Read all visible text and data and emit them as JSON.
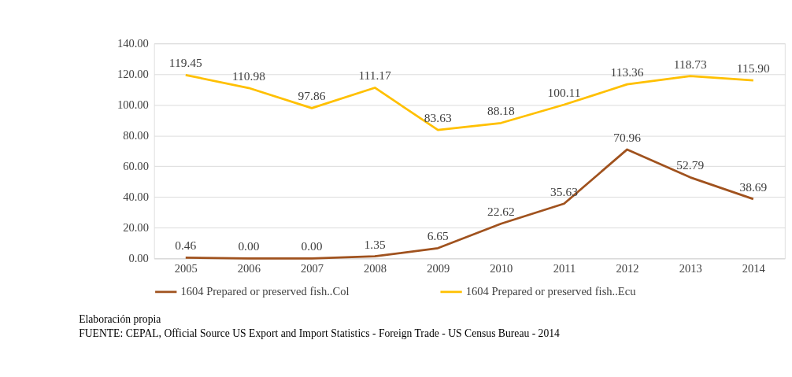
{
  "chart_data": {
    "type": "line",
    "categories": [
      "2005",
      "2006",
      "2007",
      "2008",
      "2009",
      "2010",
      "2011",
      "2012",
      "2013",
      "2014"
    ],
    "series": [
      {
        "name": "1604 Prepared or preserved fish..Col",
        "color": "#a0521e",
        "values": [
          0.46,
          0.0,
          0.0,
          1.35,
          6.65,
          22.62,
          35.63,
          70.96,
          52.79,
          38.69
        ],
        "value_labels": [
          "0.46",
          "0.00",
          "0.00",
          "1.35",
          "6.65",
          "22.62",
          "35.63",
          "70.96",
          "52.79",
          "38.69"
        ]
      },
      {
        "name": "1604 Prepared or preserved fish..Ecu",
        "color": "#ffc000",
        "values": [
          119.45,
          110.98,
          97.86,
          111.17,
          83.63,
          88.18,
          100.11,
          113.36,
          118.73,
          115.9
        ],
        "value_labels": [
          "119.45",
          "110.98",
          "97.86",
          "111.17",
          "83.63",
          "88.18",
          "100.11",
          "113.36",
          "118.73",
          "115.90"
        ]
      }
    ],
    "ylim": [
      0,
      140
    ],
    "yticks": [
      {
        "value": 0,
        "label": "0.00"
      },
      {
        "value": 20,
        "label": "20.00"
      },
      {
        "value": 40,
        "label": "40.00"
      },
      {
        "value": 60,
        "label": "60.00"
      },
      {
        "value": 80,
        "label": "80.00"
      },
      {
        "value": 100,
        "label": "100.00"
      },
      {
        "value": 120,
        "label": "120.00"
      },
      {
        "value": 140,
        "label": "140.00"
      }
    ],
    "grid": "y",
    "legend": "bottom",
    "marker": "none",
    "line_style": "solid",
    "annotations": [
      "Elaboración propia",
      "FUENTE: CEPAL, Official Source US Export and Import Statistics - Foreign Trade - US Census Bureau - 2014"
    ]
  }
}
